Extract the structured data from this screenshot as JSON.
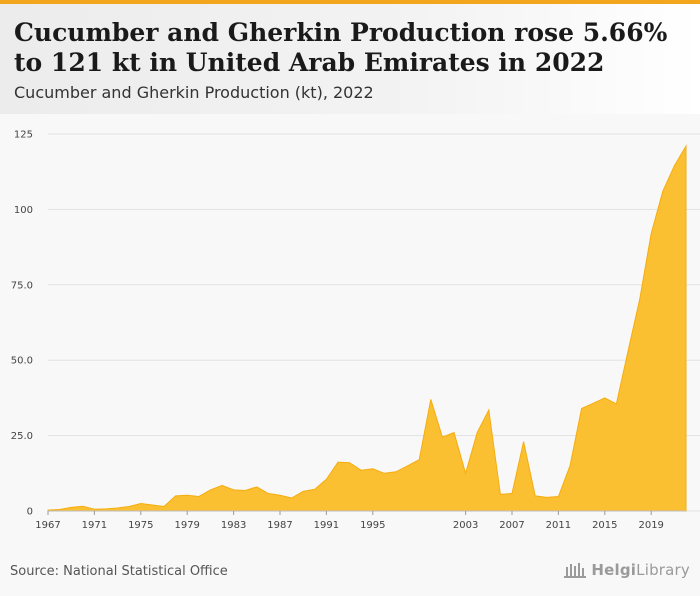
{
  "header": {
    "title": "Cucumber and Gherkin Production rose 5.66% to 121 kt in United Arab Emirates in 2022",
    "subtitle": "Cucumber and Gherkin Production (kt), 2022"
  },
  "footer": {
    "source": "Source: National Statistical Office",
    "logo_text_bold": "Helgi",
    "logo_text_rest": "Library"
  },
  "colors": {
    "accent": "#f2a51d",
    "area_fill": "#fbbf32",
    "area_line": "#f5ad0f",
    "grid": "#e2e2e2"
  },
  "chart_data": {
    "type": "area",
    "title": "Cucumber and Gherkin Production (kt), 2022",
    "xlabel": "",
    "ylabel": "",
    "ylim": [
      0,
      125
    ],
    "y_ticks": [
      "0",
      "25.0",
      "50.0",
      "75.0",
      "100",
      "125"
    ],
    "x_ticks": [
      "1967",
      "1971",
      "1975",
      "1979",
      "1983",
      "1987",
      "1991",
      "1995",
      "2003",
      "2007",
      "2011",
      "2015",
      "2019"
    ],
    "grid": true,
    "legend": "none",
    "x": [
      1967,
      1968,
      1969,
      1970,
      1971,
      1972,
      1973,
      1974,
      1975,
      1976,
      1977,
      1978,
      1979,
      1980,
      1981,
      1982,
      1983,
      1984,
      1985,
      1986,
      1987,
      1988,
      1989,
      1990,
      1991,
      1992,
      1993,
      1994,
      1995,
      1996,
      1997,
      1998,
      1999,
      2000,
      2001,
      2002,
      2003,
      2004,
      2005,
      2006,
      2007,
      2008,
      2009,
      2010,
      2011,
      2012,
      2013,
      2014,
      2015,
      2016,
      2017,
      2018,
      2019,
      2020,
      2021,
      2022
    ],
    "values": [
      0.3,
      0.5,
      1.2,
      1.6,
      0.6,
      0.7,
      1.0,
      1.5,
      2.5,
      2.0,
      1.5,
      5.0,
      5.2,
      4.8,
      7.0,
      8.5,
      7.0,
      6.8,
      8.0,
      5.8,
      5.2,
      4.3,
      6.5,
      7.2,
      10.5,
      16.2,
      16.0,
      13.5,
      14.0,
      12.5,
      13.0,
      15.0,
      17.0,
      37.0,
      24.5,
      26.0,
      12.5,
      26.0,
      33.5,
      5.5,
      5.8,
      23.0,
      5.0,
      4.5,
      4.8,
      15.0,
      34.0,
      35.7,
      37.5,
      35.5,
      53.0,
      70.0,
      92.0,
      106.0,
      114.5,
      121.0
    ]
  }
}
